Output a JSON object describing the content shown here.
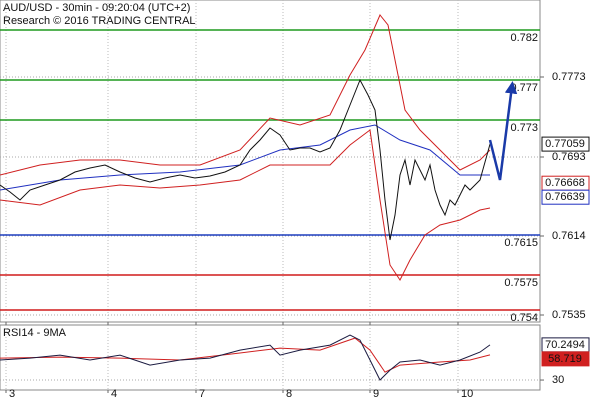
{
  "chart_data": [
    {
      "type": "line",
      "title": "AUD/USD - 30min - 09:20:04 (UTC+2)",
      "subtitle": "Research © 2016 TRADING CENTRAL",
      "xlim": [
        0,
        540
      ],
      "ylim": [
        0.7528,
        0.785
      ],
      "yticks": [
        0.7773,
        0.7693,
        0.7614,
        0.7535
      ],
      "grid": true,
      "levels": [
        {
          "value": 0.782,
          "color": "#1f9a1f"
        },
        {
          "value": 0.777,
          "color": "#1f9a1f"
        },
        {
          "value": 0.773,
          "color": "#1f9a1f"
        },
        {
          "value": 0.7615,
          "color": "#1f3fbf"
        },
        {
          "value": 0.7575,
          "color": "#d01c1c"
        },
        {
          "value": 0.754,
          "color": "#d01c1c"
        }
      ],
      "series": [
        {
          "color": "#d02020",
          "x": [
            0,
            40,
            80,
            120,
            160,
            200,
            240,
            270,
            300,
            330,
            350,
            365,
            380,
            388,
            395,
            405,
            420,
            440,
            460,
            480,
            490
          ],
          "values": [
            0.7675,
            0.7685,
            0.769,
            0.769,
            0.7685,
            0.7685,
            0.77,
            0.7732,
            0.7725,
            0.7735,
            0.7775,
            0.78,
            0.7835,
            0.7825,
            0.779,
            0.774,
            0.772,
            0.77,
            0.768,
            0.769,
            0.77
          ]
        },
        {
          "color": "#d02020",
          "x": [
            0,
            40,
            80,
            120,
            160,
            200,
            240,
            270,
            300,
            330,
            350,
            370,
            380,
            390,
            400,
            410,
            425,
            440,
            460,
            480,
            490
          ],
          "values": [
            0.765,
            0.7645,
            0.766,
            0.7665,
            0.7662,
            0.7665,
            0.767,
            0.7685,
            0.7685,
            0.7685,
            0.7705,
            0.772,
            0.765,
            0.7585,
            0.757,
            0.759,
            0.7615,
            0.7625,
            0.763,
            0.764,
            0.7642
          ]
        },
        {
          "color": "#2030c0",
          "x": [
            0,
            60,
            120,
            180,
            240,
            280,
            320,
            350,
            375,
            400,
            430,
            460,
            490
          ],
          "values": [
            0.766,
            0.767,
            0.7675,
            0.7678,
            0.7685,
            0.77,
            0.7705,
            0.772,
            0.7725,
            0.771,
            0.77,
            0.7675,
            0.7675
          ]
        },
        {
          "color": "#111111",
          "tag": true,
          "x": [
            0,
            10,
            20,
            30,
            45,
            60,
            75,
            90,
            105,
            120,
            135,
            150,
            165,
            180,
            195,
            210,
            225,
            240,
            250,
            260,
            270,
            280,
            290,
            300,
            310,
            320,
            330,
            340,
            350,
            360,
            368,
            375,
            380,
            385,
            390,
            395,
            400,
            405,
            410,
            415,
            420,
            425,
            430,
            435,
            440,
            445,
            450,
            455,
            460,
            465,
            470,
            480,
            490
          ],
          "values": [
            0.7665,
            0.7658,
            0.765,
            0.766,
            0.7665,
            0.767,
            0.7678,
            0.7682,
            0.7685,
            0.7678,
            0.7672,
            0.7668,
            0.7672,
            0.7675,
            0.7672,
            0.7674,
            0.7678,
            0.7685,
            0.77,
            0.771,
            0.7722,
            0.7715,
            0.77,
            0.7702,
            0.7702,
            0.7698,
            0.7702,
            0.772,
            0.7745,
            0.777,
            0.7755,
            0.774,
            0.77,
            0.765,
            0.761,
            0.7635,
            0.7675,
            0.769,
            0.7665,
            0.769,
            0.768,
            0.767,
            0.7685,
            0.766,
            0.7645,
            0.7635,
            0.765,
            0.7645,
            0.7655,
            0.7665,
            0.766,
            0.767,
            0.77059
          ]
        }
      ],
      "forecast": {
        "color": "#1a3aa8",
        "x": [
          490,
          500,
          512
        ],
        "values": [
          0.771,
          0.767,
          0.7764
        ]
      },
      "tags": [
        {
          "value": 0.76668,
          "color": "#d02020"
        },
        {
          "value": 0.76639,
          "color": "#2030c0"
        }
      ]
    },
    {
      "type": "line",
      "title": "RSI14 - 9MA",
      "xlim": [
        0,
        540
      ],
      "xticks": [
        {
          "value": 6,
          "label": "3"
        },
        {
          "value": 108,
          "label": "4"
        },
        {
          "value": 196,
          "label": "7"
        },
        {
          "value": 283,
          "label": "8"
        },
        {
          "value": 370,
          "label": "9"
        },
        {
          "value": 458,
          "label": "10"
        }
      ],
      "ylim": [
        18.6,
        93
      ],
      "yticks": [
        30
      ],
      "grid": true,
      "series": [
        {
          "color": "#d02020",
          "tag": true,
          "x": [
            0,
            60,
            120,
            180,
            240,
            280,
            320,
            355,
            370,
            385,
            400,
            440,
            470,
            490
          ],
          "values": [
            55.1,
            56.3,
            55.1,
            52.9,
            60.9,
            66.6,
            64.3,
            78.0,
            64.3,
            39.1,
            47.1,
            50.6,
            52.9,
            58.719
          ]
        },
        {
          "color": "#1a1a40",
          "tag": true,
          "x": [
            0,
            30,
            60,
            90,
            120,
            150,
            180,
            210,
            240,
            270,
            280,
            300,
            330,
            350,
            360,
            370,
            380,
            390,
            400,
            420,
            440,
            460,
            480,
            490
          ],
          "values": [
            52.9,
            55.1,
            58.6,
            52.9,
            58.6,
            47.1,
            52.9,
            55.1,
            64.3,
            70.0,
            58.6,
            64.3,
            70.0,
            81.4,
            75.7,
            52.9,
            30.0,
            41.4,
            50.6,
            52.9,
            47.1,
            52.9,
            62.0,
            70.2494
          ]
        }
      ]
    }
  ]
}
